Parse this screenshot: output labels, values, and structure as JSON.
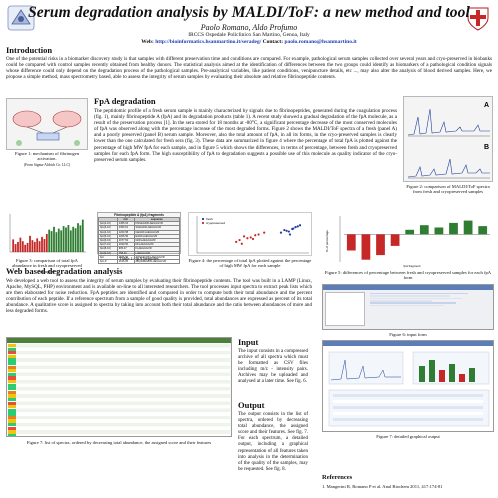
{
  "header": {
    "title": "Serum degradation analysis by MALDI/ToF: a new method and tool",
    "authors": "Paolo Romano, Aldo Profumo",
    "affiliation": "IRCCS Ospedale Policlinico San Martino, Genoa, Italy",
    "web_label": "Web: ",
    "web_url": "http://bioinformatics.hsanmartino.it/seradeg/",
    "contact_label": " Contact: ",
    "contact_email": "paolo.romano@hsanmartino.it"
  },
  "introduction": {
    "heading": "Introduction",
    "text": "One of the potential risks in a biomarker discovery study is that samples with different preservation time and conditions are compared. For example, pathological serum samples collected over several years and cryo-preserved in biobanks could be compared with control samples recently obtained from healthy donors. The statistical analysis aimed at the identification of differences between the two groups could identify as biomarkers of a pathological condition signals whose difference could only depend on the degradation process of the pathological samples. Pre-analytical variables, like patient conditions, venipuncture details, etc ..., may also alter the analysis of blood derived samples. Here, we propose a simple method, mass spectrometry based, able to assess the integrity of serum samples by evaluating their absolute and relative fibrinopeptide contents."
  },
  "fpa_degradation": {
    "heading": "FpA degradation",
    "text": "The peptidomic profile of a fresh serum sample is mainly characterized by signals due to fibrinopeptides, generated during the coagulation process (fig. 1), mainly fibrinopeptide A (fpA) and its degradation products (table 1). A recent study showed a gradual degradation of the fpA molecule, as a result of the preservation process [1]. In the sera stored for 18 months at -80°C, a significant percentage decrease of the most conserved molecules of fpA was observed along with the percentage increase of the most degraded forms. Figure 2 shows the MALDI/ToF spectra of a fresh (panel A) and a poorly preserved (panel B) serum sample. Moreover, also the total amount of fpA, in all its forms, in the cryo-preserved samples is clearly lower than the one calculated for fresh sera (fig. 3). These data are summarized in figure 4 where the percentage of total fpA is plotted against the percentage of high MW fpA for each sample, and in figure 5 which shows the differences, in terms of percentage, between fresh and cryopreserved samples for each fpA form. The high susceptibility of fpA to degradation suggests a possible use of this molecule as quality indicator of the cryo-preserved serum samples."
  },
  "figures": {
    "fig1_caption": "Figure 1: mechanism of fibrinogen activation.",
    "fig1_source": "(From Sigma-Aldrich Co. LLC)",
    "fig2_caption": "Figure 2: comparison of MALDI/ToF spectra from fresh and cryopreserved samples",
    "fig2_panel_a": "A",
    "fig2_panel_b": "B",
    "fig3_caption": "Figure 3: comparison of total fpA abundance in fresh and cryopreserved samples",
    "table1_caption": "Table 1: fpA peptides",
    "fig4_caption": "Figure 4: the percentage of total fpA plotted against the percentage of high MW fpA for each sample",
    "fig4_legend_fresh": "fresh",
    "fig4_legend_cryo": "cryopreserved",
    "fig4_xlabel": "fpA fragment",
    "fig5_caption": "Figure 5: differences of percentage between fresh and cryopreserved samples for each fpA form",
    "fig5_ylabel": "% of percentage",
    "fig5_xlabel": "fpA fragment",
    "fig6_caption": "Figure 6: input form",
    "fig7_caption": "Figure 7: list of spectra, ordered by decreasing total abundance, the assigned score and their features",
    "fig8_caption": "Figure 7: detailed graphical output"
  },
  "table1": {
    "title": "Fibrinopeptide A (fpA) fragments",
    "headers": [
      "",
      "m/z",
      "sequence"
    ],
    "rows": [
      [
        "fpA(2-16)",
        "1465.64",
        "DSGEGDFLAEGGGVR"
      ],
      [
        "fpA(3-16)",
        "1350.61",
        "SGEGDFLAEGGGVR"
      ],
      [
        "fpA(4-16)",
        "1263.58",
        "GEGDFLAEGGGVR"
      ],
      [
        "fpA(5-16)",
        "1206.56",
        "EGDFLAEGGGVR"
      ],
      [
        "fpA(6-16)",
        "1077.52",
        "GDFLAEGGGVR"
      ],
      [
        "fpA(7-16)",
        "1020.50",
        "DFLAEGGGVR"
      ],
      [
        "fpA(8-16)",
        "905.47",
        "FLAEGGGVR"
      ],
      [
        "fpA(9-16)",
        "758.40",
        "LAEGGGVR"
      ],
      [
        "fpA",
        "1536.69",
        "ADSGEGDFLAEGGGVR"
      ],
      [
        "fpA-P",
        "1616.65",
        "ADpSGEGDFLAEGGGVR"
      ]
    ]
  },
  "chart_data": [
    {
      "type": "bar",
      "title": "",
      "categories": [
        "1",
        "2",
        "3",
        "4",
        "5",
        "6",
        "7",
        "8",
        "9",
        "10",
        "11",
        "12",
        "13",
        "14",
        "15",
        "16",
        "17",
        "18",
        "19",
        "20",
        "21",
        "22",
        "23",
        "24",
        "25",
        "26",
        "27",
        "28",
        "29",
        "30"
      ],
      "values": [
        0.35,
        0.22,
        0.28,
        0.4,
        0.3,
        0.2,
        0.25,
        0.45,
        0.33,
        0.28,
        0.38,
        0.3,
        0.42,
        0.36,
        0.5,
        0.62,
        0.58,
        0.7,
        0.55,
        0.65,
        0.6,
        0.72,
        0.68,
        0.75,
        0.6,
        0.7,
        0.66,
        0.8,
        0.74,
        0.9
      ]
    },
    {
      "type": "scatter",
      "series": [
        {
          "name": "fresh",
          "x": [
            0.75,
            0.8,
            0.78,
            0.82,
            0.85,
            0.88,
            0.9,
            0.86,
            0.92,
            0.83
          ],
          "y": [
            0.55,
            0.6,
            0.62,
            0.58,
            0.65,
            0.7,
            0.72,
            0.66,
            0.75,
            0.5
          ]
        },
        {
          "name": "cryopreserved",
          "x": [
            0.35,
            0.4,
            0.45,
            0.5,
            0.42,
            0.55,
            0.38,
            0.48,
            0.52,
            0.6
          ],
          "y": [
            0.3,
            0.25,
            0.4,
            0.38,
            0.45,
            0.5,
            0.35,
            0.42,
            0.48,
            0.55
          ]
        }
      ],
      "xlim": [
        0,
        1
      ],
      "ylim": [
        0,
        1
      ]
    },
    {
      "type": "bar",
      "categories": [
        "1",
        "2",
        "3",
        "4",
        "5",
        "6",
        "7",
        "8",
        "9",
        "10"
      ],
      "values": [
        -0.35,
        -0.55,
        -0.45,
        -0.25,
        0.1,
        0.2,
        0.15,
        0.25,
        0.3,
        0.18
      ],
      "ylim": [
        -0.6,
        0.4
      ]
    }
  ],
  "web_based": {
    "heading": "Web based degradation analysis",
    "text": "We developed a web tool to assess the integrity of serum samples by evaluating their fibrinopeptide contents. The tool was built in a LAMP (Linux, Apache, MySQL, PHP) environment and is available on-line to all interested researchers. The tool processes input spectra to extract peak lists which are then elaborated for noise reduction. FpA peptides are identified and compared in order to compute both their total abundance and the percent contribution of each peptide. If a reference spectrum from a sample of good quality is provided, total abundances are expressed as percent of its total abundance. A qualitative score is assigned to spectra by taking into account both their total abundance and the ratio between abundances of more and less degraded forms."
  },
  "input": {
    "heading": "Input",
    "text": "The input consists in a compressed archive of all spectra which must be formatted as CSV files including m/z - intensity pairs. Archives may be uploaded and analysed at a later time. See fig. 6."
  },
  "output": {
    "heading": "Output",
    "text": "The output consists in the list of spectra, ordered by decreasing total abundance, the assigned score and their features. See fig. 7. For each spectrum, a detailed output, including a graphical representation of all features taken into analysis in the determination of the quality of the samples, may be requested. See fig. 8."
  },
  "references": {
    "heading": "References",
    "items": [
      "1. Mangerini R, Romano P et al. Anal Biochem 2011, 417:174-81"
    ]
  },
  "colors": {
    "link": "#1a3fb5",
    "accent_red": "#c0392b",
    "bar_green": "#2e7d32",
    "bar_red": "#c62828"
  }
}
